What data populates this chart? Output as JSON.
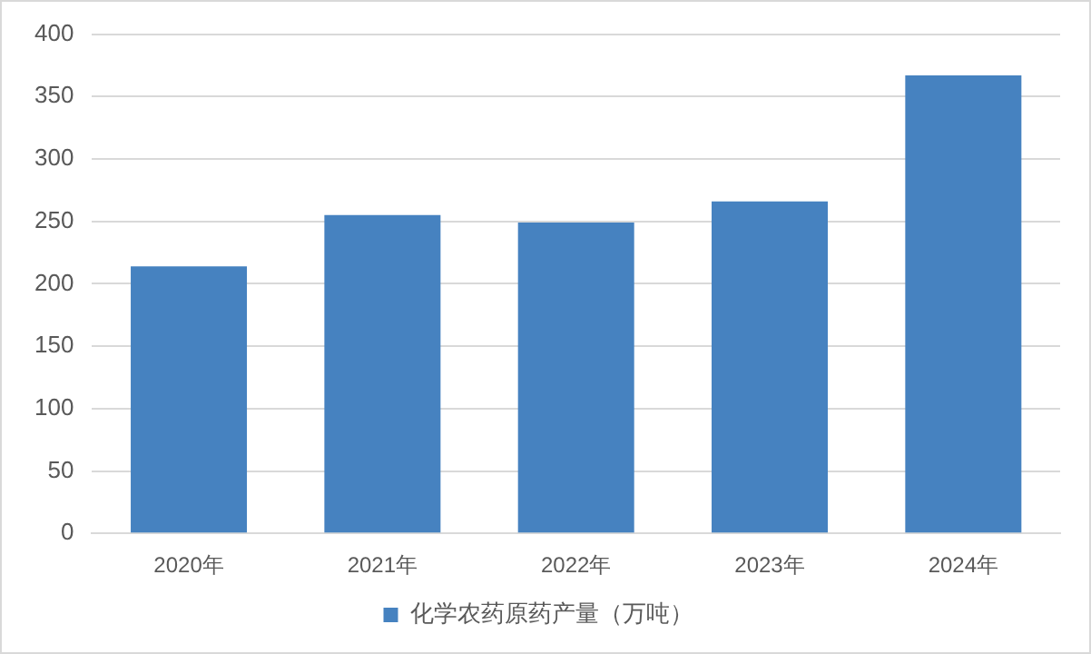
{
  "chart_data": {
    "type": "bar",
    "categories": [
      "2020年",
      "2021年",
      "2022年",
      "2023年",
      "2024年"
    ],
    "series": [
      {
        "name": "化学农药原药产量（万吨）",
        "color": "#4682c0",
        "values": [
          214,
          255,
          249,
          266,
          367
        ]
      }
    ],
    "ylim": [
      0,
      400
    ],
    "yticks": [
      0,
      50,
      100,
      150,
      200,
      250,
      300,
      350,
      400
    ],
    "grid": "y",
    "legend": "bottom"
  }
}
